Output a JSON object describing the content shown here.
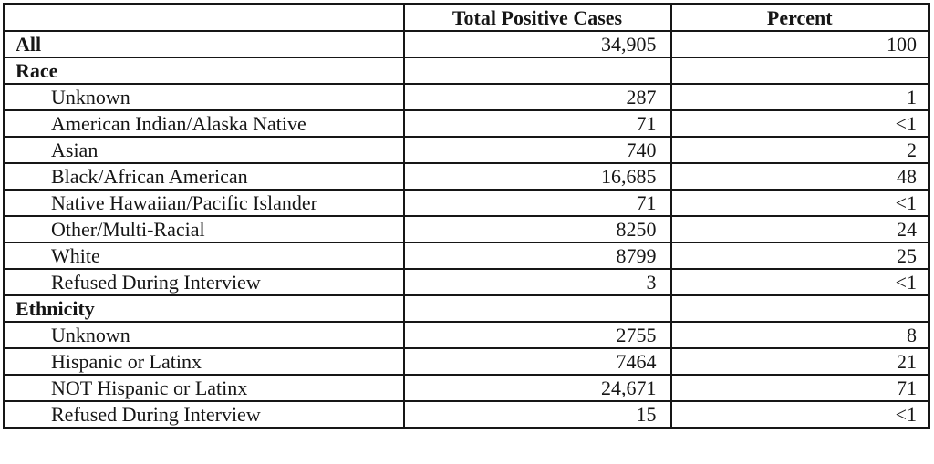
{
  "table": {
    "columns": [
      "",
      "Total Positive Cases",
      "Percent"
    ],
    "rows": [
      {
        "label": "All",
        "bold": true,
        "indent": false,
        "cases": "34,905",
        "percent": "100"
      },
      {
        "label": "Race",
        "bold": true,
        "indent": false,
        "cases": "",
        "percent": ""
      },
      {
        "label": "Unknown",
        "bold": false,
        "indent": true,
        "cases": "287",
        "percent": "1"
      },
      {
        "label": "American Indian/Alaska Native",
        "bold": false,
        "indent": true,
        "cases": "71",
        "percent": "<1"
      },
      {
        "label": "Asian",
        "bold": false,
        "indent": true,
        "cases": "740",
        "percent": "2"
      },
      {
        "label": "Black/African American",
        "bold": false,
        "indent": true,
        "cases": "16,685",
        "percent": "48"
      },
      {
        "label": "Native Hawaiian/Pacific Islander",
        "bold": false,
        "indent": true,
        "cases": "71",
        "percent": "<1"
      },
      {
        "label": "Other/Multi-Racial",
        "bold": false,
        "indent": true,
        "cases": "8250",
        "percent": "24"
      },
      {
        "label": "White",
        "bold": false,
        "indent": true,
        "cases": "8799",
        "percent": "25"
      },
      {
        "label": "Refused During Interview",
        "bold": false,
        "indent": true,
        "cases": "3",
        "percent": "<1"
      },
      {
        "label": "Ethnicity",
        "bold": true,
        "indent": false,
        "cases": "",
        "percent": ""
      },
      {
        "label": "Unknown",
        "bold": false,
        "indent": true,
        "cases": "2755",
        "percent": "8"
      },
      {
        "label": "Hispanic or Latinx",
        "bold": false,
        "indent": true,
        "cases": "7464",
        "percent": "21"
      },
      {
        "label": "NOT Hispanic or Latinx",
        "bold": false,
        "indent": true,
        "cases": "24,671",
        "percent": "71"
      },
      {
        "label": "Refused During Interview",
        "bold": false,
        "indent": true,
        "cases": "15",
        "percent": "<1"
      }
    ]
  },
  "chart_data": {
    "type": "table",
    "title": "",
    "columns": [
      "",
      "Total Positive Cases",
      "Percent"
    ],
    "rows": [
      [
        "All",
        "34,905",
        "100"
      ],
      [
        "Race",
        "",
        ""
      ],
      [
        "Unknown",
        "287",
        "1"
      ],
      [
        "American Indian/Alaska Native",
        "71",
        "<1"
      ],
      [
        "Asian",
        "740",
        "2"
      ],
      [
        "Black/African American",
        "16,685",
        "48"
      ],
      [
        "Native Hawaiian/Pacific Islander",
        "71",
        "<1"
      ],
      [
        "Other/Multi-Racial",
        "8250",
        "24"
      ],
      [
        "White",
        "8799",
        "25"
      ],
      [
        "Refused During Interview",
        "3",
        "<1"
      ],
      [
        "Ethnicity",
        "",
        ""
      ],
      [
        "Unknown",
        "2755",
        "8"
      ],
      [
        "Hispanic or Latinx",
        "7464",
        "21"
      ],
      [
        "NOT Hispanic or Latinx",
        "24,671",
        "71"
      ],
      [
        "Refused During Interview",
        "15",
        "<1"
      ]
    ]
  }
}
